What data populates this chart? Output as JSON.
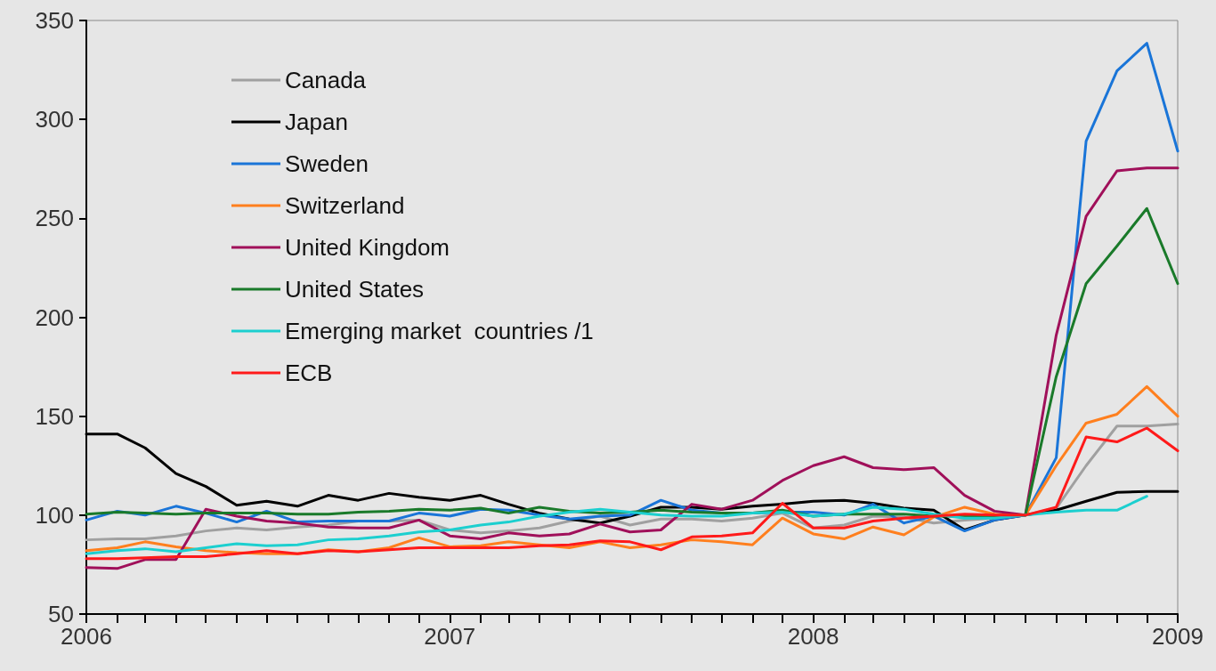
{
  "chart_data": {
    "type": "line",
    "x": [
      "2006-01",
      "2006-02",
      "2006-03",
      "2006-04",
      "2006-05",
      "2006-06",
      "2006-07",
      "2006-08",
      "2006-09",
      "2006-10",
      "2006-11",
      "2006-12",
      "2007-01",
      "2007-02",
      "2007-03",
      "2007-04",
      "2007-05",
      "2007-06",
      "2007-07",
      "2007-08",
      "2007-09",
      "2007-10",
      "2007-11",
      "2007-12",
      "2008-01",
      "2008-02",
      "2008-03",
      "2008-04",
      "2008-05",
      "2008-06",
      "2008-07",
      "2008-08",
      "2008-09",
      "2008-10",
      "2008-11",
      "2008-12",
      "2009-01"
    ],
    "series": [
      {
        "name": "Canada",
        "color": "#a0a0a0",
        "values": [
          87.5,
          88,
          88,
          89.5,
          92,
          93.5,
          92.5,
          94,
          95,
          97,
          97,
          97.5,
          92.5,
          91,
          92,
          93.5,
          97,
          99.5,
          95,
          98,
          98,
          97,
          98.5,
          101,
          93.5,
          95,
          99.5,
          99,
          96,
          97.5,
          98.5,
          100,
          103.5,
          125,
          145,
          145,
          146
        ]
      },
      {
        "name": "Japan",
        "color": "#000000",
        "values": [
          141,
          141,
          134,
          121,
          114.5,
          105,
          107,
          104.5,
          110,
          107.5,
          111,
          109,
          107.5,
          110,
          105.5,
          101,
          98,
          96,
          99.5,
          104,
          104,
          103,
          104.5,
          105.5,
          107,
          107.5,
          106,
          103.5,
          102.5,
          92.5,
          97.5,
          100,
          102.5,
          107,
          111.5,
          112,
          112
        ]
      },
      {
        "name": "Sweden",
        "color": "#1a75d8",
        "values": [
          97.5,
          102,
          100,
          104.5,
          101,
          96.5,
          102,
          96.5,
          97,
          97,
          97,
          101,
          99.5,
          103,
          102.5,
          100,
          98,
          99.5,
          100,
          107.5,
          102.5,
          101,
          101,
          101.5,
          101.5,
          100,
          105.5,
          96,
          99.5,
          92,
          97.5,
          100,
          129,
          289,
          324.5,
          338.5,
          284
        ]
      },
      {
        "name": "Switzerland",
        "color": "#ff7f1e",
        "values": [
          82,
          83.5,
          86.5,
          84,
          82,
          81,
          80.5,
          80.5,
          82.5,
          81.5,
          83.5,
          88.5,
          84,
          84.5,
          86.5,
          85,
          83.5,
          86.5,
          83.5,
          85,
          87.5,
          86.5,
          85,
          98.5,
          90.5,
          88,
          94,
          90,
          99,
          104,
          100.5,
          100,
          125,
          146.5,
          151,
          165,
          150
        ]
      },
      {
        "name": "United Kingdom",
        "color": "#a0105a",
        "values": [
          73.5,
          73,
          77.5,
          77.5,
          103,
          99.5,
          97,
          96,
          94,
          93.5,
          93.5,
          97.5,
          89.5,
          88,
          91,
          89.5,
          90.5,
          95.5,
          91.5,
          92.5,
          105.5,
          103,
          107.5,
          117.5,
          125,
          129.5,
          124,
          123,
          124,
          110,
          102,
          100,
          191,
          251,
          274,
          275.5,
          275.5
        ]
      },
      {
        "name": "United States",
        "color": "#1a7a2a",
        "values": [
          100.5,
          101.5,
          101,
          100.5,
          101,
          101,
          101,
          100.5,
          100.5,
          101.5,
          102,
          103,
          102.5,
          103.5,
          101,
          104,
          102,
          101,
          101.5,
          102.5,
          101.5,
          101,
          101,
          102.5,
          99.5,
          100.5,
          100.5,
          100.5,
          99.5,
          99.5,
          99.5,
          100,
          170,
          217,
          236,
          255,
          217
        ]
      },
      {
        "name": "Emerging market  countries /1",
        "color": "#1ccfcf",
        "values": [
          80.5,
          82,
          83,
          81.5,
          83.5,
          85.5,
          84.5,
          85,
          87.5,
          88,
          89.5,
          91.5,
          92.5,
          95,
          96.5,
          99.5,
          101.5,
          103,
          101.5,
          100,
          99.5,
          99.5,
          101,
          101.5,
          99.5,
          100.5,
          104,
          103,
          100.5,
          98.5,
          98.5,
          100,
          101.5,
          102.5,
          102.5,
          109.5,
          null
        ]
      },
      {
        "name": "ECB",
        "color": "#ff1a1a",
        "values": [
          78,
          78,
          78.5,
          79,
          79,
          80.5,
          82,
          80.5,
          82,
          81.5,
          82.5,
          83.5,
          83.5,
          83.5,
          83.5,
          84.5,
          85,
          87,
          86.5,
          82.5,
          89,
          89.5,
          91,
          106,
          93.5,
          93.5,
          97,
          98.5,
          99.5,
          100.5,
          100,
          100,
          104,
          139.5,
          137,
          144,
          132.5
        ]
      }
    ],
    "xlim": [
      "2006-01",
      "2009-01"
    ],
    "xticks": [
      {
        "value": "2006-01",
        "label": "2006"
      },
      {
        "value": "2006-02",
        "label": null
      },
      {
        "value": "2006-03",
        "label": null
      },
      {
        "value": "2006-04",
        "label": null
      },
      {
        "value": "2006-05",
        "label": null
      },
      {
        "value": "2006-06",
        "label": null
      },
      {
        "value": "2006-07",
        "label": null
      },
      {
        "value": "2006-08",
        "label": null
      },
      {
        "value": "2006-09",
        "label": null
      },
      {
        "value": "2006-10",
        "label": null
      },
      {
        "value": "2006-11",
        "label": null
      },
      {
        "value": "2006-12",
        "label": null
      },
      {
        "value": "2007-01",
        "label": "2007"
      },
      {
        "value": "2007-02",
        "label": null
      },
      {
        "value": "2007-03",
        "label": null
      },
      {
        "value": "2007-04",
        "label": null
      },
      {
        "value": "2007-05",
        "label": null
      },
      {
        "value": "2007-06",
        "label": null
      },
      {
        "value": "2007-07",
        "label": null
      },
      {
        "value": "2007-08",
        "label": null
      },
      {
        "value": "2007-09",
        "label": null
      },
      {
        "value": "2007-10",
        "label": null
      },
      {
        "value": "2007-11",
        "label": null
      },
      {
        "value": "2007-12",
        "label": null
      },
      {
        "value": "2008-01",
        "label": "2008"
      },
      {
        "value": "2008-02",
        "label": null
      },
      {
        "value": "2008-03",
        "label": null
      },
      {
        "value": "2008-04",
        "label": null
      },
      {
        "value": "2008-05",
        "label": null
      },
      {
        "value": "2008-06",
        "label": null
      },
      {
        "value": "2008-07",
        "label": null
      },
      {
        "value": "2008-08",
        "label": null
      },
      {
        "value": "2008-09",
        "label": null
      },
      {
        "value": "2008-10",
        "label": null
      },
      {
        "value": "2008-11",
        "label": null
      },
      {
        "value": "2008-12",
        "label": null
      },
      {
        "value": "2009-01",
        "label": "2009"
      }
    ],
    "ylim": [
      50,
      350
    ],
    "yticks": [
      50,
      100,
      150,
      200,
      250,
      300,
      350
    ],
    "grid": false,
    "legend": "top left",
    "marker": "none",
    "line_style": "solid"
  }
}
